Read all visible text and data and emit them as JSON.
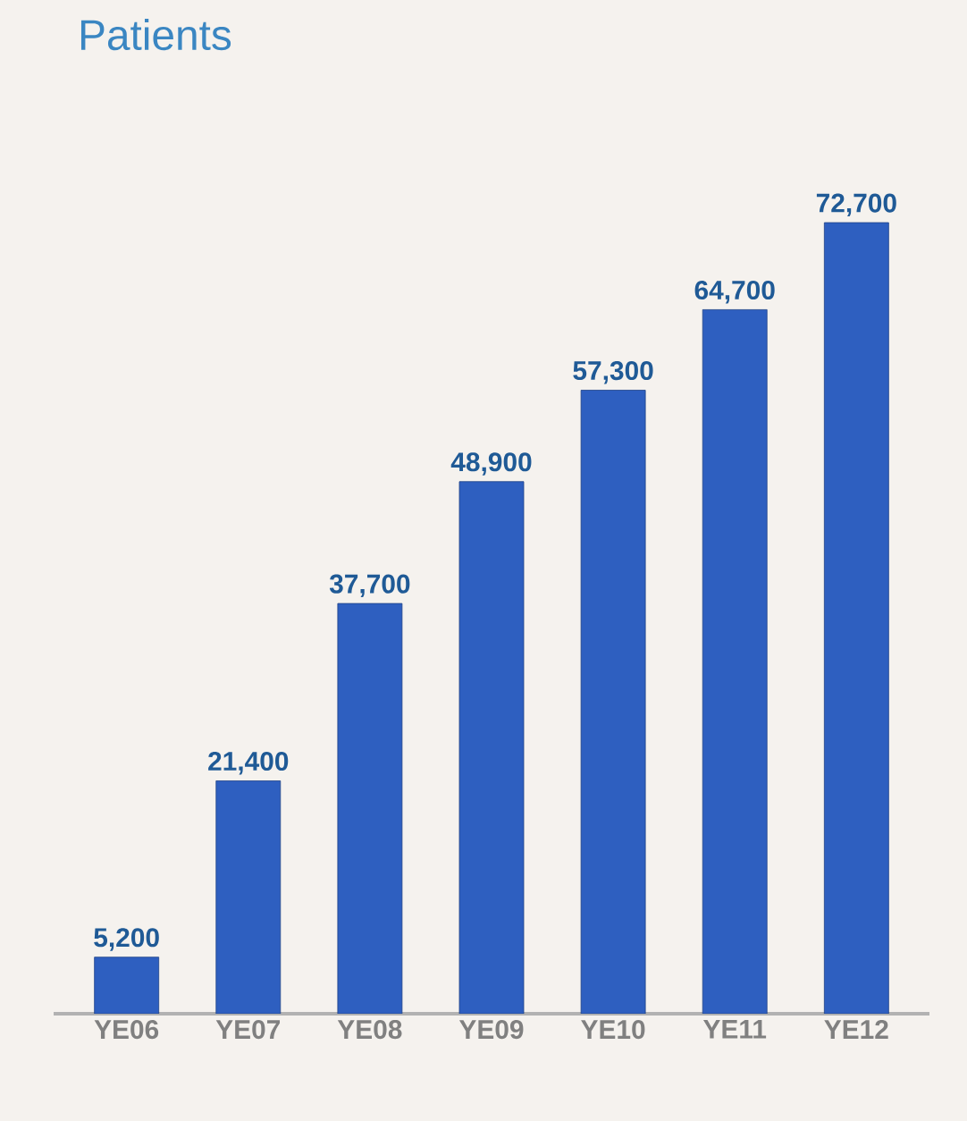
{
  "chart_data": {
    "type": "bar",
    "title": "Patients",
    "categories": [
      "YE06",
      "YE07",
      "YE08",
      "YE09",
      "YE10",
      "YE11",
      "YE12"
    ],
    "values": [
      5200,
      21400,
      37700,
      48900,
      57300,
      64700,
      72700
    ],
    "value_labels": [
      "5,200",
      "21,400",
      "37,700",
      "48,900",
      "57,300",
      "64,700",
      "72,700"
    ],
    "color": "#2e5fc0",
    "tick_labels": "x"
  }
}
